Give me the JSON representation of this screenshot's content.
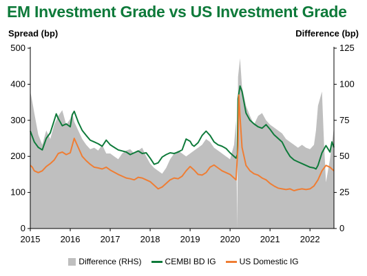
{
  "chart_data": {
    "type": "line",
    "title": "EM Investment Grade vs US Investment Grade",
    "ylabel": "Spread (bp)",
    "y2label": "Difference (bp)",
    "xlim": [
      2015,
      2022.6
    ],
    "ylim": [
      0,
      500
    ],
    "y2lim": [
      0,
      125
    ],
    "x_ticks": [
      "2015",
      "2016",
      "2017",
      "2018",
      "2019",
      "2020",
      "2021",
      "2022"
    ],
    "y_ticks": [
      "0",
      "100",
      "200",
      "300",
      "400",
      "500"
    ],
    "y2_ticks": [
      "0",
      "25",
      "50",
      "75",
      "100",
      "125"
    ],
    "legend_position": "bottom",
    "colors": {
      "difference": "#bfbfbf",
      "cembi": "#0e7a3a",
      "usig": "#ef7d33"
    },
    "series": [
      {
        "name": "Difference (RHS)",
        "type": "area",
        "axis": "right",
        "x": [
          2015.0,
          2015.05,
          2015.1,
          2015.2,
          2015.3,
          2015.4,
          2015.5,
          2015.6,
          2015.7,
          2015.8,
          2015.9,
          2016.0,
          2016.05,
          2016.1,
          2016.2,
          2016.3,
          2016.4,
          2016.5,
          2016.6,
          2016.7,
          2016.8,
          2016.9,
          2017.0,
          2017.1,
          2017.2,
          2017.3,
          2017.4,
          2017.5,
          2017.6,
          2017.7,
          2017.8,
          2017.9,
          2018.0,
          2018.1,
          2018.2,
          2018.3,
          2018.4,
          2018.5,
          2018.6,
          2018.7,
          2018.8,
          2018.9,
          2019.0,
          2019.1,
          2019.2,
          2019.3,
          2019.4,
          2019.5,
          2019.6,
          2019.7,
          2019.8,
          2019.9,
          2020.0,
          2020.1,
          2020.15,
          2020.18,
          2020.2,
          2020.25,
          2020.3,
          2020.4,
          2020.5,
          2020.6,
          2020.7,
          2020.8,
          2020.9,
          2021.0,
          2021.1,
          2021.2,
          2021.3,
          2021.4,
          2021.5,
          2021.6,
          2021.7,
          2021.8,
          2021.9,
          2022.0,
          2022.1,
          2022.15,
          2022.2,
          2022.3,
          2022.35,
          2022.4,
          2022.5,
          2022.6
        ],
        "values": [
          95,
          88,
          80,
          65,
          58,
          68,
          62,
          72,
          78,
          82,
          72,
          76,
          80,
          74,
          68,
          62,
          58,
          55,
          56,
          54,
          58,
          52,
          52,
          50,
          48,
          52,
          54,
          55,
          52,
          54,
          56,
          50,
          45,
          42,
          40,
          38,
          42,
          48,
          52,
          54,
          52,
          50,
          52,
          54,
          56,
          58,
          62,
          60,
          56,
          54,
          52,
          50,
          48,
          58,
          75,
          0,
          105,
          118,
          98,
          85,
          78,
          72,
          78,
          80,
          75,
          72,
          70,
          68,
          66,
          62,
          60,
          58,
          56,
          58,
          56,
          55,
          58,
          68,
          85,
          95,
          60,
          32,
          48,
          70
        ]
      },
      {
        "name": "CEMBI BD IG",
        "type": "line",
        "axis": "left",
        "x": [
          2015.0,
          2015.05,
          2015.1,
          2015.2,
          2015.3,
          2015.4,
          2015.5,
          2015.6,
          2015.65,
          2015.7,
          2015.8,
          2015.9,
          2016.0,
          2016.05,
          2016.1,
          2016.2,
          2016.3,
          2016.4,
          2016.5,
          2016.6,
          2016.7,
          2016.8,
          2016.9,
          2017.0,
          2017.1,
          2017.2,
          2017.3,
          2017.4,
          2017.5,
          2017.6,
          2017.7,
          2017.8,
          2017.9,
          2018.0,
          2018.1,
          2018.2,
          2018.3,
          2018.4,
          2018.5,
          2018.6,
          2018.7,
          2018.8,
          2018.9,
          2019.0,
          2019.05,
          2019.1,
          2019.2,
          2019.3,
          2019.4,
          2019.5,
          2019.6,
          2019.7,
          2019.8,
          2019.9,
          2020.0,
          2020.1,
          2020.15,
          2020.18,
          2020.2,
          2020.25,
          2020.3,
          2020.35,
          2020.4,
          2020.5,
          2020.6,
          2020.7,
          2020.8,
          2020.9,
          2021.0,
          2021.1,
          2021.2,
          2021.3,
          2021.4,
          2021.5,
          2021.6,
          2021.7,
          2021.8,
          2021.9,
          2022.0,
          2022.1,
          2022.15,
          2022.2,
          2022.3,
          2022.4,
          2022.5,
          2022.55,
          2022.6
        ],
        "values": [
          270,
          255,
          240,
          225,
          218,
          250,
          265,
          300,
          318,
          305,
          285,
          290,
          282,
          315,
          325,
          295,
          272,
          258,
          245,
          240,
          235,
          228,
          245,
          232,
          225,
          218,
          215,
          212,
          205,
          210,
          215,
          208,
          210,
          195,
          178,
          182,
          198,
          205,
          210,
          208,
          212,
          218,
          248,
          242,
          232,
          228,
          238,
          258,
          270,
          258,
          240,
          232,
          228,
          222,
          210,
          200,
          195,
          205,
          360,
          395,
          380,
          350,
          320,
          300,
          290,
          282,
          278,
          288,
          275,
          260,
          250,
          240,
          218,
          200,
          190,
          185,
          180,
          175,
          170,
          168,
          165,
          175,
          210,
          230,
          212,
          240,
          225
        ]
      },
      {
        "name": "US Domestic IG",
        "type": "line",
        "axis": "left",
        "x": [
          2015.0,
          2015.05,
          2015.1,
          2015.2,
          2015.3,
          2015.4,
          2015.5,
          2015.6,
          2015.7,
          2015.8,
          2015.9,
          2016.0,
          2016.05,
          2016.1,
          2016.2,
          2016.3,
          2016.4,
          2016.5,
          2016.6,
          2016.7,
          2016.8,
          2016.9,
          2017.0,
          2017.1,
          2017.2,
          2017.3,
          2017.4,
          2017.5,
          2017.6,
          2017.7,
          2017.8,
          2017.9,
          2018.0,
          2018.1,
          2018.2,
          2018.3,
          2018.4,
          2018.5,
          2018.6,
          2018.7,
          2018.8,
          2018.9,
          2019.0,
          2019.1,
          2019.2,
          2019.3,
          2019.4,
          2019.5,
          2019.6,
          2019.7,
          2019.8,
          2019.9,
          2020.0,
          2020.1,
          2020.15,
          2020.2,
          2020.22,
          2020.25,
          2020.3,
          2020.35,
          2020.4,
          2020.5,
          2020.6,
          2020.7,
          2020.8,
          2020.9,
          2021.0,
          2021.1,
          2021.2,
          2021.3,
          2021.4,
          2021.5,
          2021.6,
          2021.7,
          2021.8,
          2021.9,
          2022.0,
          2022.1,
          2022.2,
          2022.3,
          2022.4,
          2022.5,
          2022.6
        ],
        "values": [
          175,
          170,
          160,
          155,
          160,
          172,
          180,
          190,
          208,
          212,
          205,
          210,
          230,
          250,
          225,
          200,
          188,
          178,
          170,
          168,
          165,
          170,
          162,
          156,
          150,
          145,
          140,
          138,
          135,
          142,
          140,
          135,
          130,
          120,
          110,
          115,
          125,
          135,
          140,
          138,
          145,
          160,
          172,
          162,
          150,
          148,
          155,
          170,
          176,
          168,
          160,
          155,
          150,
          140,
          135,
          230,
          370,
          310,
          225,
          200,
          175,
          160,
          152,
          148,
          140,
          135,
          125,
          118,
          112,
          110,
          108,
          110,
          105,
          108,
          110,
          108,
          110,
          118,
          135,
          160,
          175,
          170,
          160
        ]
      }
    ]
  }
}
